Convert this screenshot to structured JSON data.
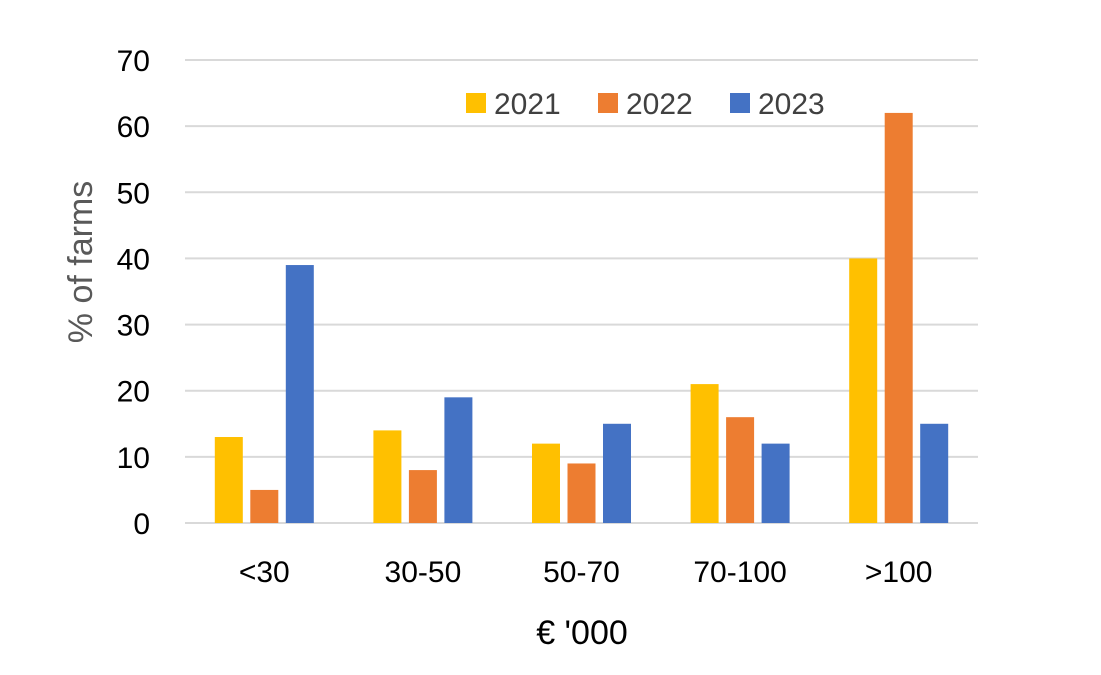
{
  "chart_data": {
    "type": "bar",
    "title": "",
    "xlabel": "€ '000",
    "ylabel": "% of farms",
    "categories": [
      "<30",
      "30-50",
      "50-70",
      "70-100",
      ">100"
    ],
    "series": [
      {
        "name": "2021",
        "color": "#ffc000",
        "values": [
          13,
          14,
          12,
          21,
          40
        ]
      },
      {
        "name": "2022",
        "color": "#ed7d31",
        "values": [
          5,
          8,
          9,
          16,
          62
        ]
      },
      {
        "name": "2023",
        "color": "#4472c4",
        "values": [
          39,
          19,
          15,
          12,
          15
        ]
      }
    ],
    "ylim": [
      0,
      70
    ],
    "yticks": [
      0,
      10,
      20,
      30,
      40,
      50,
      60,
      70
    ],
    "grid": true,
    "legend": "top-right",
    "xlabel_color": "#000000",
    "ylabel_color": "#595959"
  }
}
